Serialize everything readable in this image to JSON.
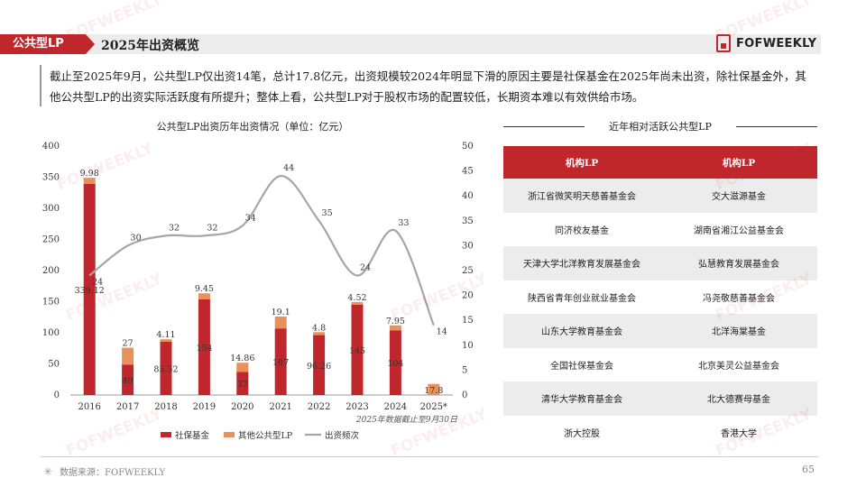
{
  "header": {
    "tag": "公共型LP",
    "title": "2025年出资概览",
    "logo": "FOFWEEKLY"
  },
  "intro": "截止至2025年9月，公共型LP仅出资14笔，总计17.8亿元，出资规模较2024年明显下滑的原因主要是社保基金在2025年尚未出资，除社保基金外，其他公共型LP的出资实际活跃度有所提升；整体上看，公共型LP对于股权市场的配置较低，长期资本难以有效供给市场。",
  "chart_title": "公共型LP出资历年出资情况（单位：亿元）",
  "chart_data": {
    "type": "bar",
    "categories": [
      "2016",
      "2017",
      "2018",
      "2019",
      "2020",
      "2021",
      "2022",
      "2023",
      "2024",
      "2025*"
    ],
    "series": [
      {
        "name": "社保基金",
        "color": "#c0272d",
        "values": [
          339.12,
          49,
          85.52,
          154,
          37,
          107,
          96.26,
          145,
          104,
          0
        ]
      },
      {
        "name": "其他公共型LP",
        "color": "#e8915c",
        "values": [
          9.98,
          27,
          4.11,
          9.45,
          14.86,
          19.1,
          4.8,
          4.52,
          7.95,
          17.8
        ]
      },
      {
        "name": "出资频次",
        "type": "line",
        "axis": "right",
        "color": "#a6a6a6",
        "values": [
          24,
          30,
          32,
          32,
          34,
          44,
          35,
          24,
          33,
          14
        ]
      }
    ],
    "bar_labels": {
      "社保基金": [
        "339.12",
        "49",
        "85.52",
        "154",
        "37",
        "107",
        "96.26",
        "145",
        "104",
        ""
      ],
      "其他公共型LP": [
        "9.98",
        "27",
        "4.11",
        "9.45",
        "14.86",
        "19.1",
        "4.8",
        "4.52",
        "7.95",
        "17.8"
      ]
    },
    "y_left": {
      "min": 0,
      "max": 400,
      "ticks": [
        "0",
        "50",
        "100",
        "150",
        "200",
        "250",
        "300",
        "350",
        "400"
      ]
    },
    "y_right": {
      "min": 0,
      "max": 50,
      "ticks": [
        "0",
        "5",
        "10",
        "15",
        "20",
        "25",
        "30",
        "35",
        "40",
        "45",
        "50"
      ]
    },
    "note": "2025年数据截止至9月30日",
    "legend_position": "bottom"
  },
  "table": {
    "title": "近年相对活跃公共型LP",
    "headers": [
      "机构LP",
      "机构LP"
    ],
    "rows": [
      [
        "浙江省微笑明天慈善基金会",
        "交大滋源基金"
      ],
      [
        "同济校友基金",
        "湖南省湘江公益基金会"
      ],
      [
        "天津大学北洋教育发展基金会",
        "弘慧教育发展基金会"
      ],
      [
        "陕西省青年创业就业基金会",
        "冯尧敬慈善基金会"
      ],
      [
        "山东大学教育基金会",
        "北洋海棠基金"
      ],
      [
        "全国社保基金会",
        "北京美灵公益基金会"
      ],
      [
        "清华大学教育基金会",
        "北大德赛母基金"
      ],
      [
        "浙大控股",
        "香港大学"
      ]
    ]
  },
  "footer": {
    "source": "数据来源：FOFWEEKLY",
    "page": "65"
  },
  "watermark": "FOFWEEKLY"
}
